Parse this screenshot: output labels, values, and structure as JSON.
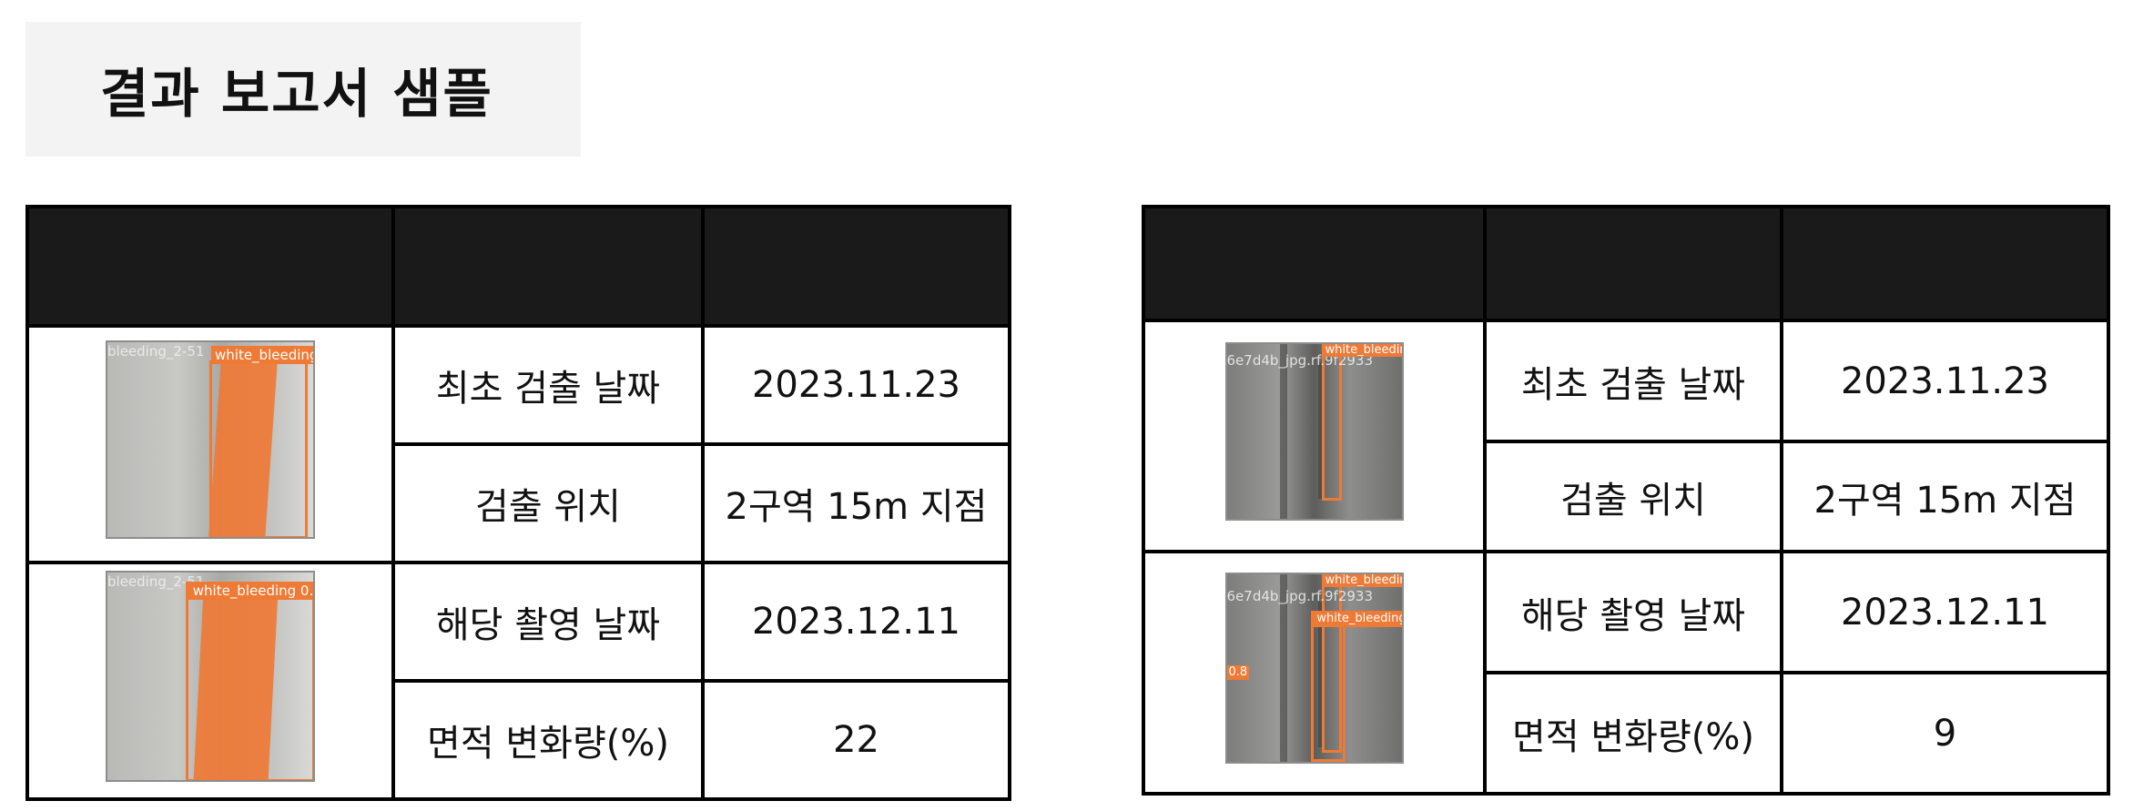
{
  "title": "결과 보고서 샘플",
  "colors": {
    "header_fill": "#1a1a1a",
    "detection_orange": "#ee7a36",
    "title_bg": "#f3f3f3"
  },
  "reports": [
    {
      "image_first": {
        "labels": [
          "bleeding_2-51",
          "white_bleeding"
        ]
      },
      "image_current": {
        "labels": [
          "bleeding_2-51",
          "white_bleeding 0."
        ]
      },
      "rows": [
        {
          "label": "최초 검출 날짜",
          "value": "2023.11.23"
        },
        {
          "label": "검출 위치",
          "value": "2구역 15m 지점"
        },
        {
          "label": "해당 촬영 날짜",
          "value": "2023.12.11"
        },
        {
          "label": "면적 변화량(%)",
          "value": "22"
        }
      ]
    },
    {
      "image_first": {
        "labels": [
          "white_bleedin",
          "6e7d4b_jpg.rf.9f2933"
        ]
      },
      "image_current": {
        "labels": [
          "white_bleedin",
          "6e7d4b_jpg.rf.9f2933",
          "white_bleeding",
          "0.8"
        ]
      },
      "rows": [
        {
          "label": "최초 검출 날짜",
          "value": "2023.11.23"
        },
        {
          "label": "검출 위치",
          "value": "2구역 15m 지점"
        },
        {
          "label": "해당 촬영 날짜",
          "value": "2023.12.11"
        },
        {
          "label": "면적 변화량(%)",
          "value": "9"
        }
      ]
    }
  ]
}
